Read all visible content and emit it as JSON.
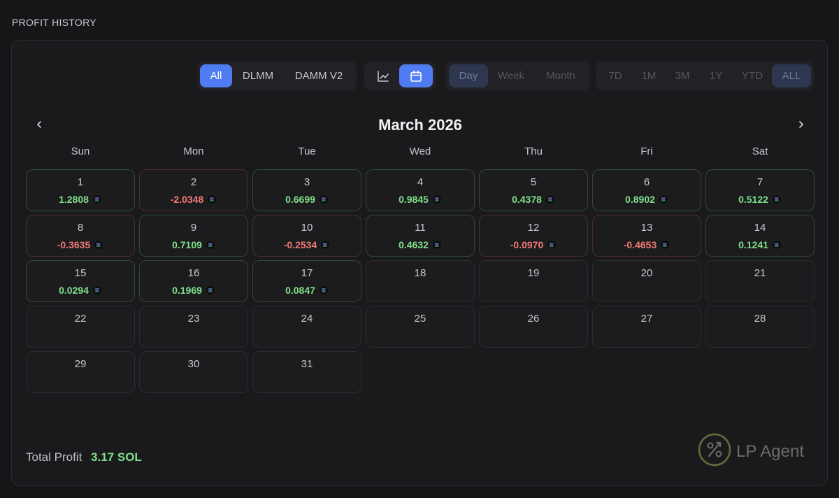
{
  "section_title": "PROFIT HISTORY",
  "filters": {
    "protocol": [
      {
        "label": "All",
        "active": true
      },
      {
        "label": "DLMM",
        "active": false
      },
      {
        "label": "DAMM V2",
        "active": false
      }
    ],
    "view": [
      {
        "icon": "line-chart-icon",
        "active": false
      },
      {
        "icon": "calendar-icon",
        "active": true
      }
    ],
    "granularity": [
      {
        "label": "Day",
        "active": true
      },
      {
        "label": "Week",
        "active": false
      },
      {
        "label": "Month",
        "active": false
      }
    ],
    "range": [
      {
        "label": "7D",
        "active": false
      },
      {
        "label": "1M",
        "active": false
      },
      {
        "label": "3M",
        "active": false
      },
      {
        "label": "1Y",
        "active": false
      },
      {
        "label": "YTD",
        "active": false
      },
      {
        "label": "ALL",
        "active": true
      }
    ]
  },
  "calendar": {
    "month_label": "March 2026",
    "weekdays": [
      "Sun",
      "Mon",
      "Tue",
      "Wed",
      "Thu",
      "Fri",
      "Sat"
    ],
    "days": [
      {
        "day": "1",
        "value": "1.2808",
        "sign": "pos"
      },
      {
        "day": "2",
        "value": "-2.0348",
        "sign": "neg"
      },
      {
        "day": "3",
        "value": "0.6699",
        "sign": "pos"
      },
      {
        "day": "4",
        "value": "0.9845",
        "sign": "pos"
      },
      {
        "day": "5",
        "value": "0.4378",
        "sign": "pos"
      },
      {
        "day": "6",
        "value": "0.8902",
        "sign": "pos"
      },
      {
        "day": "7",
        "value": "0.5122",
        "sign": "pos"
      },
      {
        "day": "8",
        "value": "-0.3635",
        "sign": "neg"
      },
      {
        "day": "9",
        "value": "0.7109",
        "sign": "pos"
      },
      {
        "day": "10",
        "value": "-0.2534",
        "sign": "neg"
      },
      {
        "day": "11",
        "value": "0.4632",
        "sign": "pos"
      },
      {
        "day": "12",
        "value": "-0.0970",
        "sign": "neg"
      },
      {
        "day": "13",
        "value": "-0.4653",
        "sign": "neg"
      },
      {
        "day": "14",
        "value": "0.1241",
        "sign": "pos"
      },
      {
        "day": "15",
        "value": "0.0294",
        "sign": "pos"
      },
      {
        "day": "16",
        "value": "0.1969",
        "sign": "pos"
      },
      {
        "day": "17",
        "value": "0.0847",
        "sign": "pos"
      },
      {
        "day": "18"
      },
      {
        "day": "19"
      },
      {
        "day": "20"
      },
      {
        "day": "21"
      },
      {
        "day": "22"
      },
      {
        "day": "23"
      },
      {
        "day": "24"
      },
      {
        "day": "25"
      },
      {
        "day": "26"
      },
      {
        "day": "27"
      },
      {
        "day": "28"
      },
      {
        "day": "29"
      },
      {
        "day": "30"
      },
      {
        "day": "31"
      }
    ]
  },
  "total": {
    "label": "Total Profit",
    "value": "3.17 SOL"
  },
  "brand": {
    "name": "LP Agent"
  },
  "colors": {
    "accent": "#4f7cf2",
    "positive": "#7fe08a",
    "negative": "#f07a76"
  }
}
